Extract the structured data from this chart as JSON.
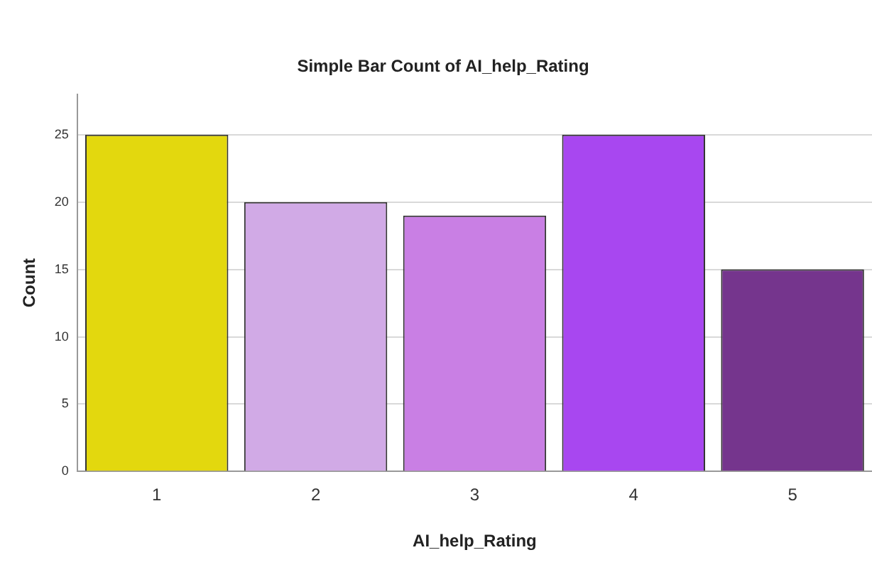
{
  "chart_data": {
    "type": "bar",
    "title": "Simple Bar Count of AI_help_Rating",
    "xlabel": "AI_help_Rating",
    "ylabel": "Count",
    "categories": [
      "1",
      "2",
      "3",
      "4",
      "5"
    ],
    "values": [
      25,
      20,
      19,
      25,
      15
    ],
    "colors": [
      "#e3d80e",
      "#d1aae6",
      "#c97fe4",
      "#a847f0",
      "#75358d"
    ],
    "ylim": [
      0,
      28
    ],
    "yticks": [
      0,
      5,
      10,
      15,
      20,
      25
    ],
    "grid": "y",
    "legend": false
  }
}
